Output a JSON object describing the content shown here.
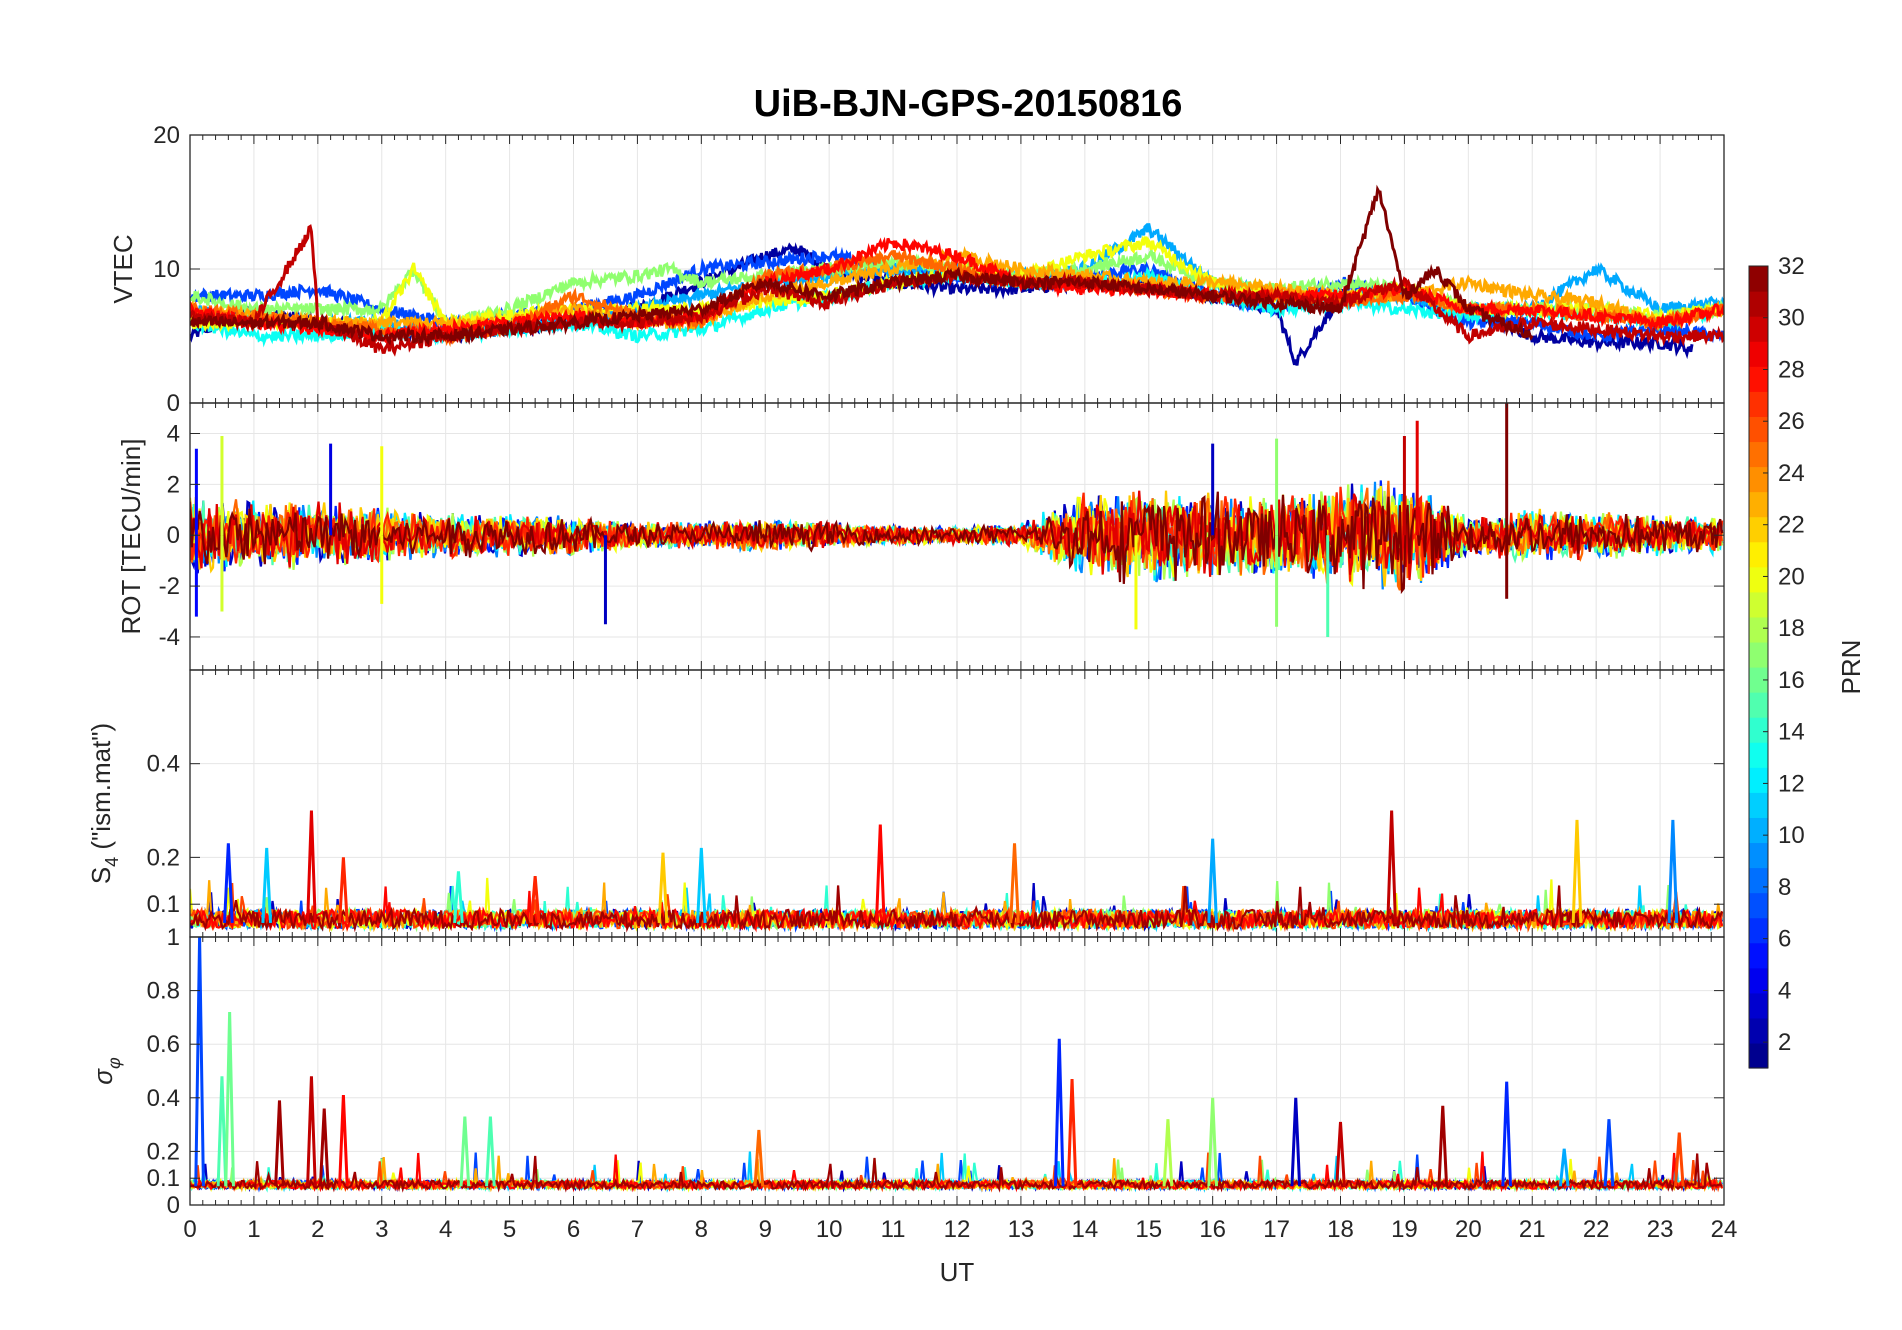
{
  "figure": {
    "title": "UiB-BJN-GPS-20150816"
  },
  "chart_data": {
    "type": "line",
    "title": "UiB-BJN-GPS-20150816",
    "xlabel": "UT",
    "xlim": [
      0,
      24
    ],
    "x_ticks": [
      0,
      1,
      2,
      3,
      4,
      5,
      6,
      7,
      8,
      9,
      10,
      11,
      12,
      13,
      14,
      15,
      16,
      17,
      18,
      19,
      20,
      21,
      22,
      23,
      24
    ],
    "grid": true,
    "colormap": "jet",
    "colorbar": {
      "label": "PRN",
      "range": [
        1,
        32
      ],
      "ticks": [
        2,
        4,
        6,
        8,
        10,
        12,
        14,
        16,
        18,
        20,
        22,
        24,
        26,
        28,
        30,
        32
      ]
    },
    "panels": [
      {
        "ylabel": "VTEC",
        "ylim": [
          0,
          20
        ],
        "y_ticks": [
          0,
          10,
          20
        ],
        "series": [
          {
            "prn": 2,
            "x": [
              0,
              1,
              2,
              3,
              4,
              5,
              6,
              7,
              8,
              9,
              9.5,
              10,
              11,
              12,
              13,
              14,
              15,
              16,
              17,
              17.3,
              18,
              19,
              20,
              21,
              22,
              23,
              23.5
            ],
            "values": [
              5,
              7,
              6,
              5.5,
              5,
              5.5,
              6,
              7,
              9,
              11,
              11.5,
              10,
              9,
              8.5,
              8.5,
              9,
              9,
              8,
              7,
              3,
              8,
              8,
              7,
              5,
              4.5,
              4.5,
              4
            ]
          },
          {
            "prn": 7,
            "x": [
              0,
              1,
              2,
              3,
              4,
              5,
              6,
              7,
              8,
              9,
              10,
              11,
              12,
              13,
              14,
              15,
              16,
              17,
              18,
              19,
              20,
              21,
              22,
              23,
              24
            ],
            "values": [
              8,
              8,
              8.5,
              7,
              6,
              6.5,
              7,
              8,
              10,
              10.5,
              11,
              10,
              9.5,
              9,
              9.5,
              10,
              8,
              7,
              9,
              8,
              6,
              6,
              5,
              5.5,
              5
            ]
          },
          {
            "prn": 10,
            "x": [
              0,
              1,
              2,
              3,
              4,
              5,
              6,
              7,
              8,
              9,
              10,
              11,
              12,
              13,
              14,
              15,
              16,
              17,
              18,
              19,
              20,
              21,
              22,
              23,
              24
            ],
            "values": [
              7,
              6,
              6,
              6,
              5,
              5.5,
              6,
              7,
              8,
              9,
              9.5,
              10,
              10,
              9.5,
              10,
              13,
              9,
              8,
              8,
              8,
              7,
              7,
              10,
              7,
              7.5
            ]
          },
          {
            "prn": 13,
            "x": [
              0,
              1,
              2,
              3,
              4,
              5,
              6,
              7,
              8,
              9,
              10,
              11,
              12,
              13,
              14,
              15,
              16,
              17,
              18,
              19,
              20,
              21,
              22,
              23,
              24
            ],
            "values": [
              6,
              5,
              5,
              5.5,
              5,
              5.5,
              6,
              5,
              5.5,
              7,
              8,
              9,
              9.5,
              9,
              9,
              9.5,
              8,
              7,
              7.5,
              7,
              6.5,
              7,
              6.5,
              6,
              7
            ]
          },
          {
            "prn": 17,
            "x": [
              0,
              1,
              2,
              3,
              3.5,
              4,
              5,
              6,
              7,
              7.5,
              8,
              9,
              10,
              11,
              12,
              13,
              14,
              15,
              16,
              17,
              18,
              19,
              20,
              21,
              22,
              23,
              24
            ],
            "values": [
              8,
              7,
              7,
              7,
              10,
              6,
              7,
              9,
              9.5,
              10,
              9,
              9.5,
              10,
              10.5,
              10,
              9.5,
              10,
              11,
              9,
              8.5,
              9,
              8.5,
              7,
              7,
              7,
              6.5,
              7
            ]
          },
          {
            "prn": 20,
            "x": [
              0,
              1,
              2,
              3,
              3.5,
              4,
              5,
              6,
              7,
              8,
              9,
              10,
              11,
              12,
              13,
              14,
              15,
              16,
              17,
              18,
              19,
              20,
              21,
              22,
              23,
              24
            ],
            "values": [
              6,
              6,
              6,
              6,
              10,
              6,
              6.5,
              7,
              7,
              7,
              7.5,
              8,
              9,
              10,
              9.5,
              11,
              12,
              9,
              8,
              8,
              8.5,
              7,
              7,
              7,
              6.5,
              7
            ]
          },
          {
            "prn": 23,
            "x": [
              0,
              1,
              2,
              3,
              4,
              5,
              6,
              7,
              8,
              9,
              10,
              11,
              12,
              13,
              14,
              15,
              16,
              17,
              18,
              19,
              20,
              21,
              22,
              23,
              24
            ],
            "values": [
              7,
              6.5,
              6,
              6,
              6,
              6,
              7,
              6,
              6,
              8,
              9,
              10,
              11,
              10,
              9.5,
              9,
              9,
              8.5,
              8,
              8,
              9,
              8,
              7.5,
              6,
              7
            ]
          },
          {
            "prn": 25,
            "x": [
              0,
              1,
              2,
              3,
              4,
              5,
              6,
              7,
              8,
              9,
              10,
              11,
              12,
              13,
              14,
              15,
              16,
              17,
              18,
              19,
              20,
              21,
              22,
              23,
              24
            ],
            "values": [
              7,
              6.5,
              6,
              5.5,
              5,
              5.5,
              8,
              6.5,
              6,
              9.5,
              10,
              11,
              10,
              9,
              9,
              8.5,
              8,
              8,
              7.5,
              8,
              7,
              7,
              6.5,
              6,
              7
            ]
          },
          {
            "prn": 28,
            "x": [
              0,
              1,
              2,
              3,
              4,
              5,
              6,
              7,
              8,
              9,
              10,
              11,
              12,
              13,
              14,
              15,
              16,
              17,
              18,
              19,
              20,
              21,
              22,
              23,
              24
            ],
            "values": [
              7,
              6,
              5.5,
              5,
              5.5,
              6,
              6.5,
              6,
              6.5,
              9,
              10,
              12,
              11,
              9,
              8.5,
              8.5,
              8,
              8,
              8,
              8.5,
              7,
              7,
              6.5,
              6,
              7
            ]
          },
          {
            "prn": 30,
            "x": [
              0,
              1,
              1.9,
              2,
              3,
              4,
              5,
              6,
              7,
              8,
              9,
              10,
              11,
              12,
              13,
              14,
              15,
              16,
              17,
              18,
              19,
              20,
              21,
              22,
              23,
              24
            ],
            "values": [
              6.5,
              6,
              13,
              6,
              4,
              5,
              5.5,
              6,
              6,
              6.5,
              8.5,
              7.5,
              9,
              9.5,
              9,
              9,
              8.5,
              8,
              8,
              7.5,
              9,
              5,
              6,
              5.5,
              5,
              5
            ]
          },
          {
            "prn": 32,
            "x": [
              0,
              1,
              2,
              3,
              4,
              5,
              6,
              7,
              8,
              9,
              10,
              11,
              12,
              13,
              14,
              15,
              16,
              17,
              18,
              18.6,
              19,
              19.5,
              20,
              21
            ],
            "values": [
              6,
              6,
              6,
              5,
              5,
              5.5,
              6,
              6.5,
              7,
              9,
              8,
              9,
              9.5,
              9,
              9,
              8.5,
              8,
              7.5,
              7,
              16,
              8,
              10,
              7,
              5
            ]
          }
        ]
      },
      {
        "ylabel": "ROT [TECU/min]",
        "ylim": [
          -5.3,
          5.2
        ],
        "y_ticks": [
          -4,
          -2,
          0,
          2,
          4
        ],
        "activity_envelope": {
          "x": [
            0,
            1,
            2,
            3,
            4,
            5,
            6,
            7,
            8,
            9,
            10,
            11,
            12,
            13,
            14,
            15,
            16,
            17,
            18,
            19,
            20,
            21,
            22,
            23,
            24
          ],
          "amplitude": [
            2.5,
            2,
            2,
            1.6,
            1.4,
            1.3,
            1.2,
            0.8,
            0.8,
            1,
            0.8,
            0.6,
            0.5,
            0.7,
            2.5,
            3,
            2.5,
            2.5,
            3,
            3.5,
            1.2,
            1.5,
            1.5,
            1.2,
            1.2
          ]
        },
        "spikes": [
          {
            "x": 0.1,
            "values": [
              3.4,
              -3.2
            ],
            "prn": 5
          },
          {
            "x": 0.5,
            "values": [
              3.9,
              -3.0
            ],
            "prn": 19
          },
          {
            "x": 2.2,
            "values": [
              3.6
            ],
            "prn": 4
          },
          {
            "x": 3.0,
            "values": [
              3.5,
              -2.7
            ],
            "prn": 20
          },
          {
            "x": 6.5,
            "values": [
              -3.5
            ],
            "prn": 3
          },
          {
            "x": 14.8,
            "values": [
              -3.7
            ],
            "prn": 20
          },
          {
            "x": 16.0,
            "values": [
              3.6
            ],
            "prn": 3
          },
          {
            "x": 17.0,
            "values": [
              3.8,
              -3.6
            ],
            "prn": 17
          },
          {
            "x": 17.8,
            "values": [
              -4.0
            ],
            "prn": 15
          },
          {
            "x": 19.0,
            "values": [
              3.9
            ],
            "prn": 30
          },
          {
            "x": 19.2,
            "values": [
              4.5
            ],
            "prn": 29
          },
          {
            "x": 20.6,
            "values": [
              5.2,
              -2.5
            ],
            "prn": 32
          }
        ]
      },
      {
        "ylabel": "S4 (\"ism.mat\")",
        "ylim": [
          0.03,
          0.6
        ],
        "y_ticks": [
          0.1,
          0.2,
          0.4
        ],
        "baseline": 0.06,
        "spikes": [
          {
            "x": 0.6,
            "value": 0.23,
            "prn": 6
          },
          {
            "x": 1.2,
            "value": 0.22,
            "prn": 11
          },
          {
            "x": 1.9,
            "value": 0.3,
            "prn": 29
          },
          {
            "x": 2.4,
            "value": 0.2,
            "prn": 27
          },
          {
            "x": 4.2,
            "value": 0.17,
            "prn": 14
          },
          {
            "x": 5.4,
            "value": 0.16,
            "prn": 27
          },
          {
            "x": 7.4,
            "value": 0.21,
            "prn": 22
          },
          {
            "x": 8.0,
            "value": 0.22,
            "prn": 11
          },
          {
            "x": 10.8,
            "value": 0.27,
            "prn": 28
          },
          {
            "x": 12.9,
            "value": 0.23,
            "prn": 25
          },
          {
            "x": 16.0,
            "value": 0.24,
            "prn": 10
          },
          {
            "x": 18.8,
            "value": 0.3,
            "prn": 30
          },
          {
            "x": 21.7,
            "value": 0.28,
            "prn": 22
          },
          {
            "x": 23.2,
            "value": 0.28,
            "prn": 9
          }
        ]
      },
      {
        "ylabel": "σ_φ",
        "ylim": [
          0,
          1
        ],
        "y_ticks": [
          0,
          0.1,
          0.2,
          0.4,
          0.6,
          0.8,
          1
        ],
        "baseline": 0.07,
        "spikes": [
          {
            "x": 0.15,
            "value": 1.0,
            "prn": 7
          },
          {
            "x": 0.5,
            "value": 0.48,
            "prn": 15
          },
          {
            "x": 0.62,
            "value": 0.72,
            "prn": 16
          },
          {
            "x": 1.4,
            "value": 0.39,
            "prn": 31
          },
          {
            "x": 1.9,
            "value": 0.48,
            "prn": 30
          },
          {
            "x": 2.1,
            "value": 0.36,
            "prn": 31
          },
          {
            "x": 2.4,
            "value": 0.41,
            "prn": 28
          },
          {
            "x": 4.3,
            "value": 0.33,
            "prn": 16
          },
          {
            "x": 4.7,
            "value": 0.33,
            "prn": 15
          },
          {
            "x": 8.9,
            "value": 0.28,
            "prn": 25
          },
          {
            "x": 13.6,
            "value": 0.62,
            "prn": 6
          },
          {
            "x": 13.8,
            "value": 0.47,
            "prn": 27
          },
          {
            "x": 15.3,
            "value": 0.32,
            "prn": 18
          },
          {
            "x": 16.0,
            "value": 0.4,
            "prn": 17
          },
          {
            "x": 17.3,
            "value": 0.4,
            "prn": 3
          },
          {
            "x": 18.0,
            "value": 0.31,
            "prn": 30
          },
          {
            "x": 19.6,
            "value": 0.37,
            "prn": 31
          },
          {
            "x": 20.6,
            "value": 0.46,
            "prn": 6
          },
          {
            "x": 21.5,
            "value": 0.21,
            "prn": 10
          },
          {
            "x": 22.2,
            "value": 0.32,
            "prn": 7
          },
          {
            "x": 23.3,
            "value": 0.27,
            "prn": 26
          }
        ]
      }
    ]
  }
}
